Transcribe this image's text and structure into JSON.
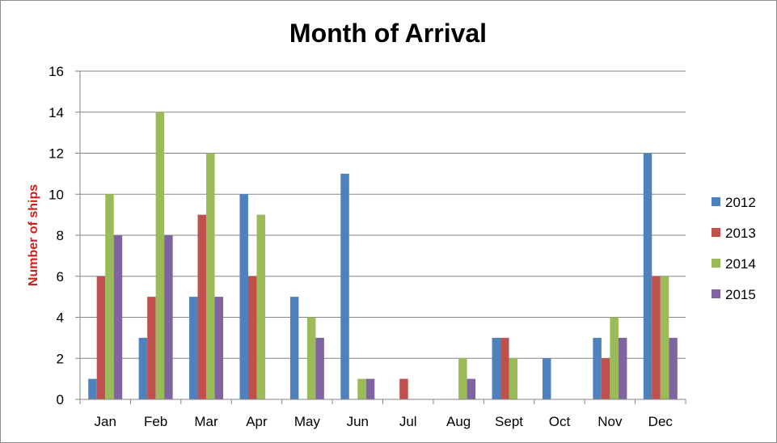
{
  "chart_data": {
    "type": "bar",
    "title": "Month of Arrival",
    "xlabel": "",
    "ylabel": "Number of ships",
    "ylim": [
      0,
      16
    ],
    "yticks": [
      0,
      2,
      4,
      6,
      8,
      10,
      12,
      14,
      16
    ],
    "grid": true,
    "legend_position": "right",
    "categories": [
      "Jan",
      "Feb",
      "Mar",
      "Apr",
      "May",
      "Jun",
      "Jul",
      "Aug",
      "Sept",
      "Oct",
      "Nov",
      "Dec"
    ],
    "series": [
      {
        "name": "2012",
        "color": "#4f81bd",
        "values": [
          1,
          3,
          5,
          10,
          5,
          11,
          0,
          0,
          3,
          2,
          3,
          12
        ]
      },
      {
        "name": "2013",
        "color": "#c0504d",
        "values": [
          6,
          5,
          9,
          6,
          0,
          0,
          1,
          0,
          3,
          0,
          2,
          6
        ]
      },
      {
        "name": "2014",
        "color": "#9bbb59",
        "values": [
          10,
          14,
          12,
          9,
          4,
          1,
          0,
          2,
          2,
          0,
          4,
          6
        ]
      },
      {
        "name": "2015",
        "color": "#8064a2",
        "values": [
          8,
          8,
          5,
          0,
          3,
          1,
          0,
          1,
          0,
          0,
          3,
          3
        ]
      }
    ]
  }
}
